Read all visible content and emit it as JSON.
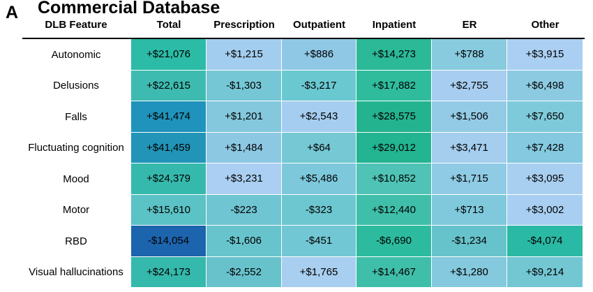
{
  "panel_letter": "A",
  "title": "Commercial Database",
  "chart_data": {
    "type": "heatmap",
    "title": "Commercial Database",
    "row_header": "DLB Feature",
    "columns": [
      "Total",
      "Prescription",
      "Outpatient",
      "Inpatient",
      "ER",
      "Other"
    ],
    "rows": [
      "Autonomic",
      "Delusions",
      "Falls",
      "Fluctuating cognition",
      "Mood",
      "Motor",
      "RBD",
      "Visual hallucinations"
    ],
    "labels": [
      [
        "+$21,076",
        "+$1,215",
        "+$886",
        "+$14,273",
        "+$788",
        "+$3,915"
      ],
      [
        "+$22,615",
        "-$1,303",
        "-$3,217",
        "+$17,882",
        "+$2,755",
        "+$6,498"
      ],
      [
        "+$41,474",
        "+$1,201",
        "+$2,543",
        "+$28,575",
        "+$1,506",
        "+$7,650"
      ],
      [
        "+$41,459",
        "+$1,484",
        "+$64",
        "+$29,012",
        "+$3,471",
        "+$7,428"
      ],
      [
        "+$24,379",
        "+$3,231",
        "+$5,486",
        "+$10,852",
        "+$1,715",
        "+$3,095"
      ],
      [
        "+$15,610",
        "-$223",
        "-$323",
        "+$12,440",
        "+$713",
        "+$3,002"
      ],
      [
        "-$14,054",
        "-$1,606",
        "-$451",
        "-$6,690",
        "-$1,234",
        "-$4,074"
      ],
      [
        "+$24,173",
        "-$2,552",
        "+$1,765",
        "+$14,467",
        "+$1,280",
        "+$9,214"
      ]
    ],
    "cell_colors": [
      [
        "#2bbba6",
        "#a3cdef",
        "#8fc8e5",
        "#2bb998",
        "#88cbdf",
        "#aacff2"
      ],
      [
        "#3ebbb0",
        "#76c7d6",
        "#6ac8d0",
        "#2ebc9d",
        "#a7cdf0",
        "#8ccae2"
      ],
      [
        "#1f93bb",
        "#83c8dd",
        "#a5cdef",
        "#24b38f",
        "#93cbe6",
        "#7fcada"
      ],
      [
        "#2294b7",
        "#8dc8e3",
        "#76c8d5",
        "#23b491",
        "#a4cdee",
        "#84c9df"
      ],
      [
        "#36b9ad",
        "#aacff2",
        "#7dc8db",
        "#4fc3b5",
        "#8fcbe5",
        "#a8cff0"
      ],
      [
        "#5bc2c5",
        "#70c5d2",
        "#6dc7d1",
        "#3fbfaa",
        "#80c9dd",
        "#a8cff1"
      ],
      [
        "#1c64ad",
        "#67c4cd",
        "#71c7d3",
        "#2cbb9f",
        "#67c3cb",
        "#2ab9a4"
      ],
      [
        "#35b9ac",
        "#68c2cc",
        "#a8cef0",
        "#3fbfaa",
        "#84c9dd",
        "#72c7d3"
      ]
    ]
  }
}
